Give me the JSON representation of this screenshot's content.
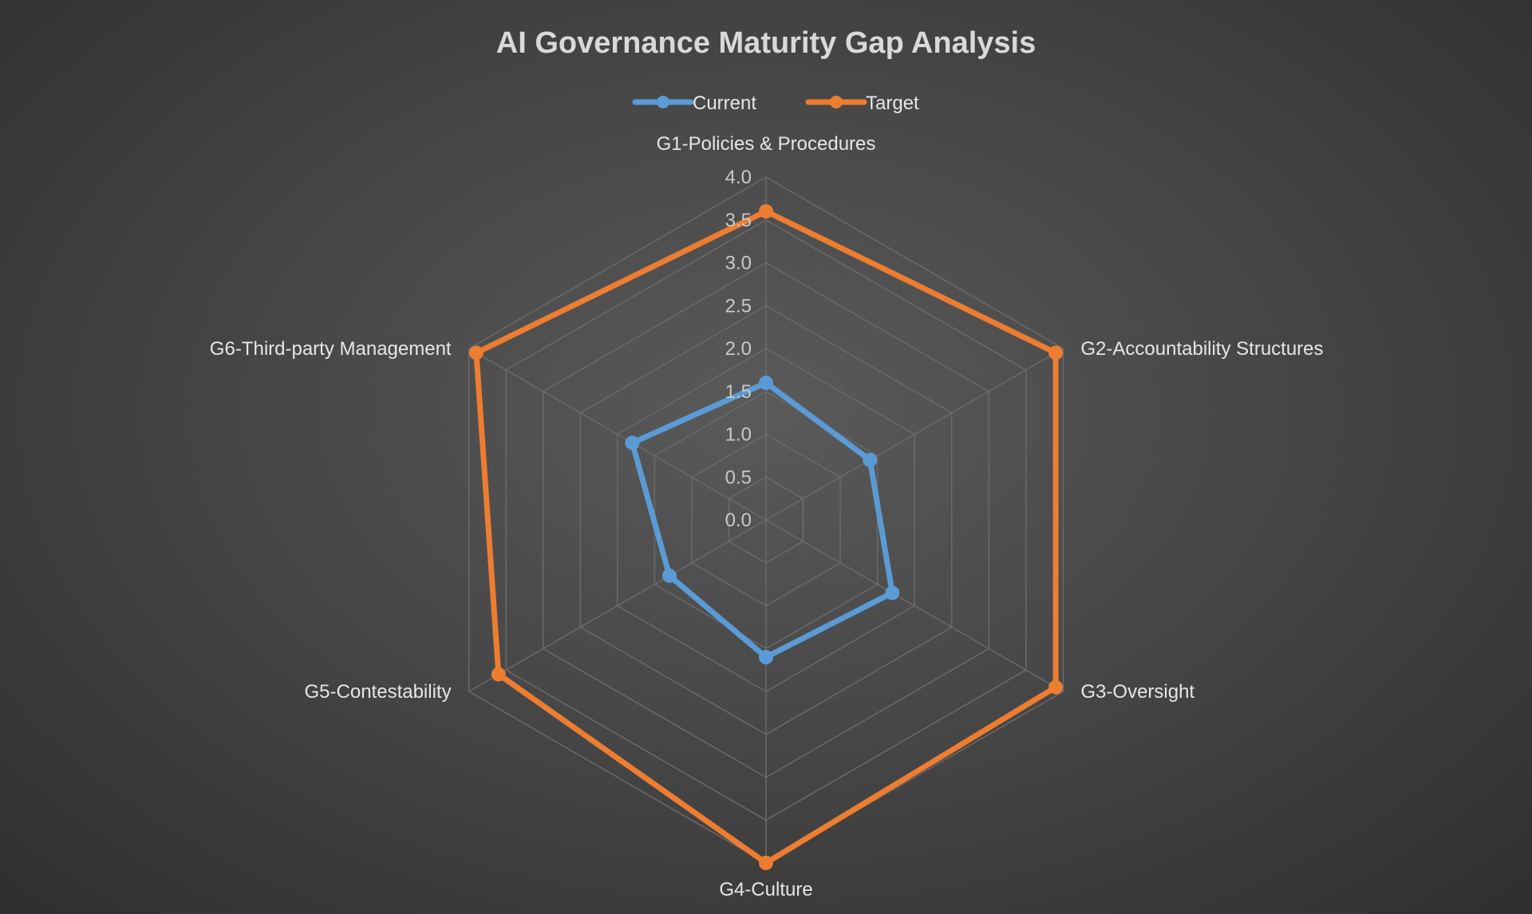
{
  "chart_data": {
    "type": "radar",
    "title": "AI Governance Maturity Gap Analysis",
    "categories": [
      "G1-Policies & Procedures",
      "G2-Accountability Structures",
      "G3-Oversight",
      "G4-Culture",
      "G5-Contestability",
      "G6-Third-party Management"
    ],
    "series": [
      {
        "name": "Current",
        "color": "#5b9bd5",
        "values": [
          1.6,
          1.4,
          1.7,
          1.6,
          1.3,
          1.8
        ]
      },
      {
        "name": "Target",
        "color": "#ed7d31",
        "values": [
          3.6,
          3.9,
          3.9,
          4.0,
          3.6,
          3.9
        ]
      }
    ],
    "rlim": [
      0,
      4.0
    ],
    "ticks": [
      "0.0",
      "0.5",
      "1.0",
      "1.5",
      "2.0",
      "2.5",
      "3.0",
      "3.5",
      "4.0"
    ],
    "legend_position": "top",
    "grid": true
  }
}
